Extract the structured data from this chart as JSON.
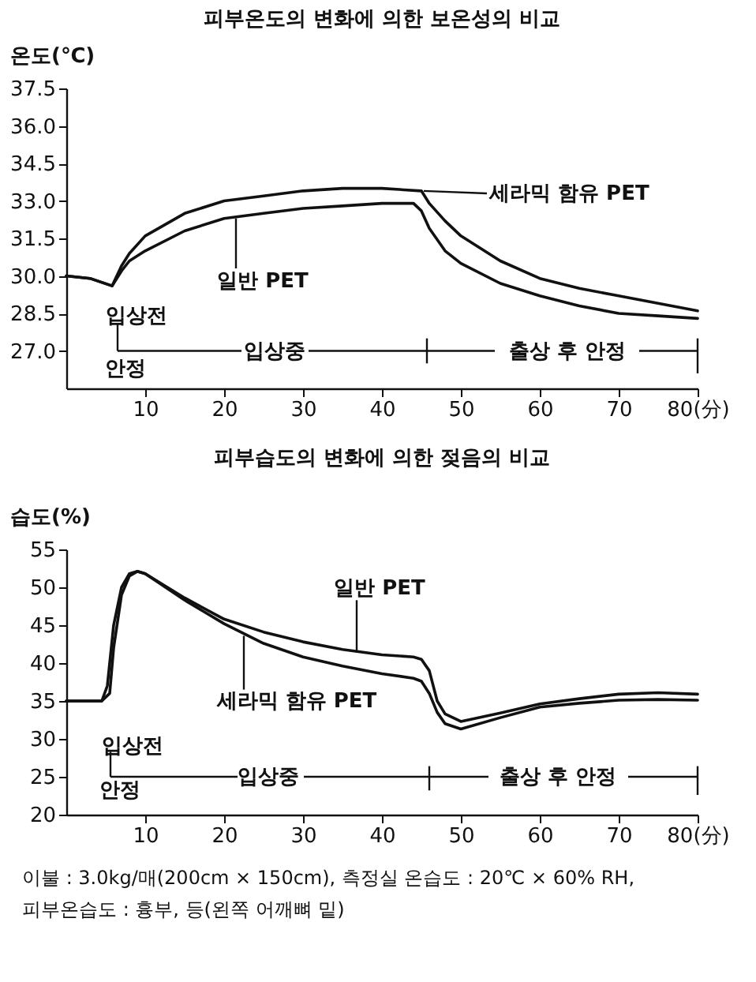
{
  "chart_data": [
    {
      "type": "line",
      "title": "피부온도의 변화에 의한 보온성의 비교",
      "ylabel": "온도(℃)",
      "xlim": [
        0,
        80
      ],
      "xticks": [
        10,
        20,
        30,
        40,
        50,
        60,
        70,
        {
          "value": 80,
          "label": "80(分)"
        }
      ],
      "ylim": [
        25.5,
        37.5
      ],
      "yticks": [
        {
          "value": 27,
          "label": "27.0"
        },
        28.5,
        {
          "value": 30,
          "label": "30.0"
        },
        31.5,
        {
          "value": 33,
          "label": "33.0"
        },
        34.5,
        {
          "value": 36,
          "label": "36.0"
        },
        37.5
      ],
      "line_style": "solid",
      "series": [
        {
          "name": "세라믹 함유 PET",
          "color": "#111111",
          "x": [
            0,
            3,
            5.8,
            7,
            8,
            10,
            15,
            20,
            25,
            30,
            35,
            40,
            45,
            46,
            48,
            50,
            55,
            60,
            65,
            70,
            75,
            80
          ],
          "values": [
            30.0,
            29.9,
            29.6,
            30.4,
            30.9,
            31.6,
            32.5,
            33.0,
            33.2,
            33.4,
            33.5,
            33.5,
            33.4,
            32.9,
            32.2,
            31.6,
            30.6,
            29.9,
            29.5,
            29.2,
            28.9,
            28.6
          ]
        },
        {
          "name": "일반 PET",
          "color": "#111111",
          "x": [
            0,
            3,
            5.8,
            7,
            8,
            10,
            15,
            20,
            25,
            30,
            35,
            40,
            44,
            45,
            46,
            48,
            50,
            55,
            60,
            65,
            70,
            75,
            80
          ],
          "values": [
            30.0,
            29.9,
            29.6,
            30.2,
            30.6,
            31.0,
            31.8,
            32.3,
            32.5,
            32.7,
            32.8,
            32.9,
            32.9,
            32.6,
            31.9,
            31.0,
            30.5,
            29.7,
            29.2,
            28.8,
            28.5,
            28.4,
            28.3
          ]
        }
      ],
      "annotations": [
        "입상전",
        "안정",
        "입상중",
        "출상 후 안정"
      ]
    },
    {
      "type": "line",
      "title": "피부습도의 변화에 의한 젖음의 비교",
      "ylabel": "습도(%)",
      "xlim": [
        0,
        80
      ],
      "xticks": [
        10,
        20,
        30,
        40,
        50,
        60,
        70,
        {
          "value": 80,
          "label": "80(分)"
        }
      ],
      "ylim": [
        20,
        55
      ],
      "yticks": [
        20,
        25,
        30,
        35,
        40,
        45,
        50,
        55
      ],
      "line_style": "solid",
      "series": [
        {
          "name": "일반 PET",
          "color": "#111111",
          "x": [
            0,
            4.5,
            5.5,
            6,
            7,
            8,
            9,
            10,
            15,
            20,
            25,
            30,
            35,
            40,
            44,
            45,
            46,
            47,
            48,
            50,
            55,
            60,
            65,
            70,
            75,
            80
          ],
          "values": [
            35,
            35,
            36,
            42,
            49,
            51.5,
            52.1,
            51.8,
            48.6,
            45.8,
            44.1,
            42.8,
            41.8,
            41.1,
            40.8,
            40.5,
            39,
            35,
            33.3,
            32.3,
            33.4,
            34.6,
            35.3,
            35.9,
            36.1,
            35.9
          ]
        },
        {
          "name": "세라믹 함유 PET",
          "color": "#111111",
          "x": [
            0,
            4.5,
            5.2,
            6,
            7,
            8,
            9,
            10,
            15,
            20,
            25,
            30,
            35,
            40,
            44,
            45,
            46,
            47,
            48,
            50,
            55,
            60,
            65,
            70,
            75,
            80
          ],
          "values": [
            35,
            35,
            37,
            45,
            50,
            51.8,
            52.1,
            51.8,
            48.3,
            45.2,
            42.6,
            40.8,
            39.6,
            38.6,
            38.0,
            37.6,
            36,
            33.5,
            32,
            31.3,
            32.8,
            34.2,
            34.7,
            35.1,
            35.2,
            35.1
          ]
        }
      ],
      "annotations": [
        "입상전",
        "안정",
        "입상중",
        "출상 후 안정",
        "이불 : 3.0kg/매(200cm × 150cm), 측정실 온습도 : 20℃ × 60% RH,",
        "피부온습도 : 흉부, 등(왼쪽 어깨뼈 밑)"
      ]
    }
  ]
}
